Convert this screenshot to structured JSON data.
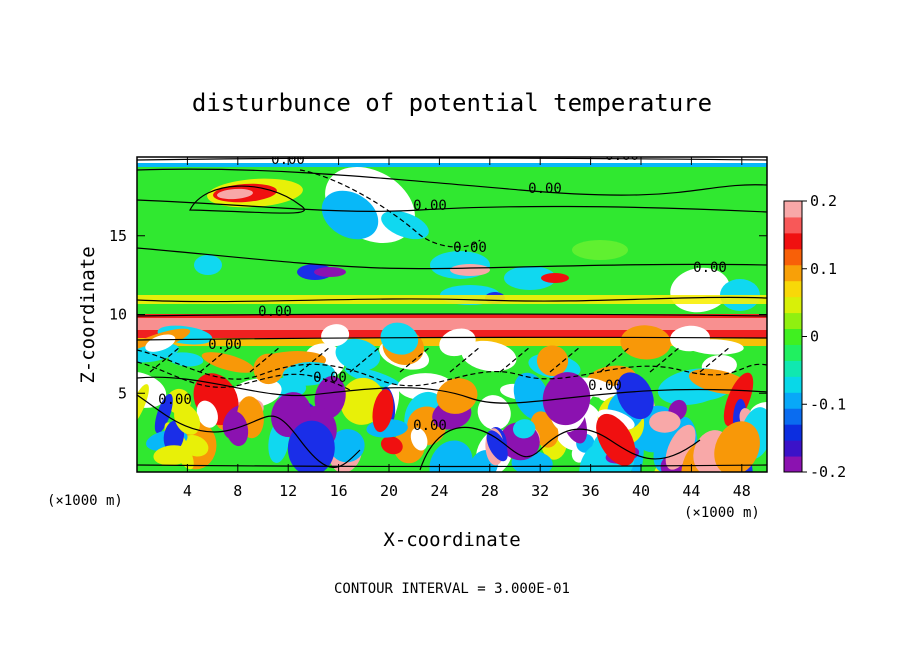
{
  "chart_data": {
    "type": "heatmap",
    "title": "disturbunce of potential temperature",
    "xlabel": "X-coordinate",
    "ylabel": "Z-coordinate",
    "x_unit_left": "(×1000 m)",
    "x_unit_right": "(×1000 m)",
    "xlim": [
      0,
      50
    ],
    "ylim": [
      0,
      20
    ],
    "x_ticks": [
      4,
      8,
      12,
      16,
      20,
      24,
      28,
      32,
      36,
      40,
      44,
      48
    ],
    "y_ticks": [
      5,
      10,
      15
    ],
    "colorbar": {
      "ticks": [
        0.2,
        0.1,
        0,
        -0.1,
        -0.2
      ],
      "tick_labels": [
        "0.2",
        "0.1",
        "0",
        "-0.1",
        "-0.2"
      ],
      "range": [
        -0.2,
        0.2
      ],
      "colors": [
        "#8b12b0",
        "#3b12c8",
        "#0c2ee0",
        "#0a6cf0",
        "#08a8f8",
        "#08d8e8",
        "#10e8b0",
        "#20f060",
        "#40f020",
        "#90f010",
        "#d8f008",
        "#f8d808",
        "#f8a008",
        "#f86008",
        "#f01010",
        "#f85858",
        "#f8a8a8"
      ]
    },
    "contour_labels": [
      "0.00",
      "0.00",
      "0.00",
      "0.00",
      "0.00",
      "0.00",
      "0.00",
      "0.00",
      "0.00",
      "0.00",
      "0.00",
      "0.00"
    ],
    "footer": "CONTOUR INTERVAL = 3.000E-01",
    "grid": false,
    "legend_placement": "right colorbar"
  }
}
